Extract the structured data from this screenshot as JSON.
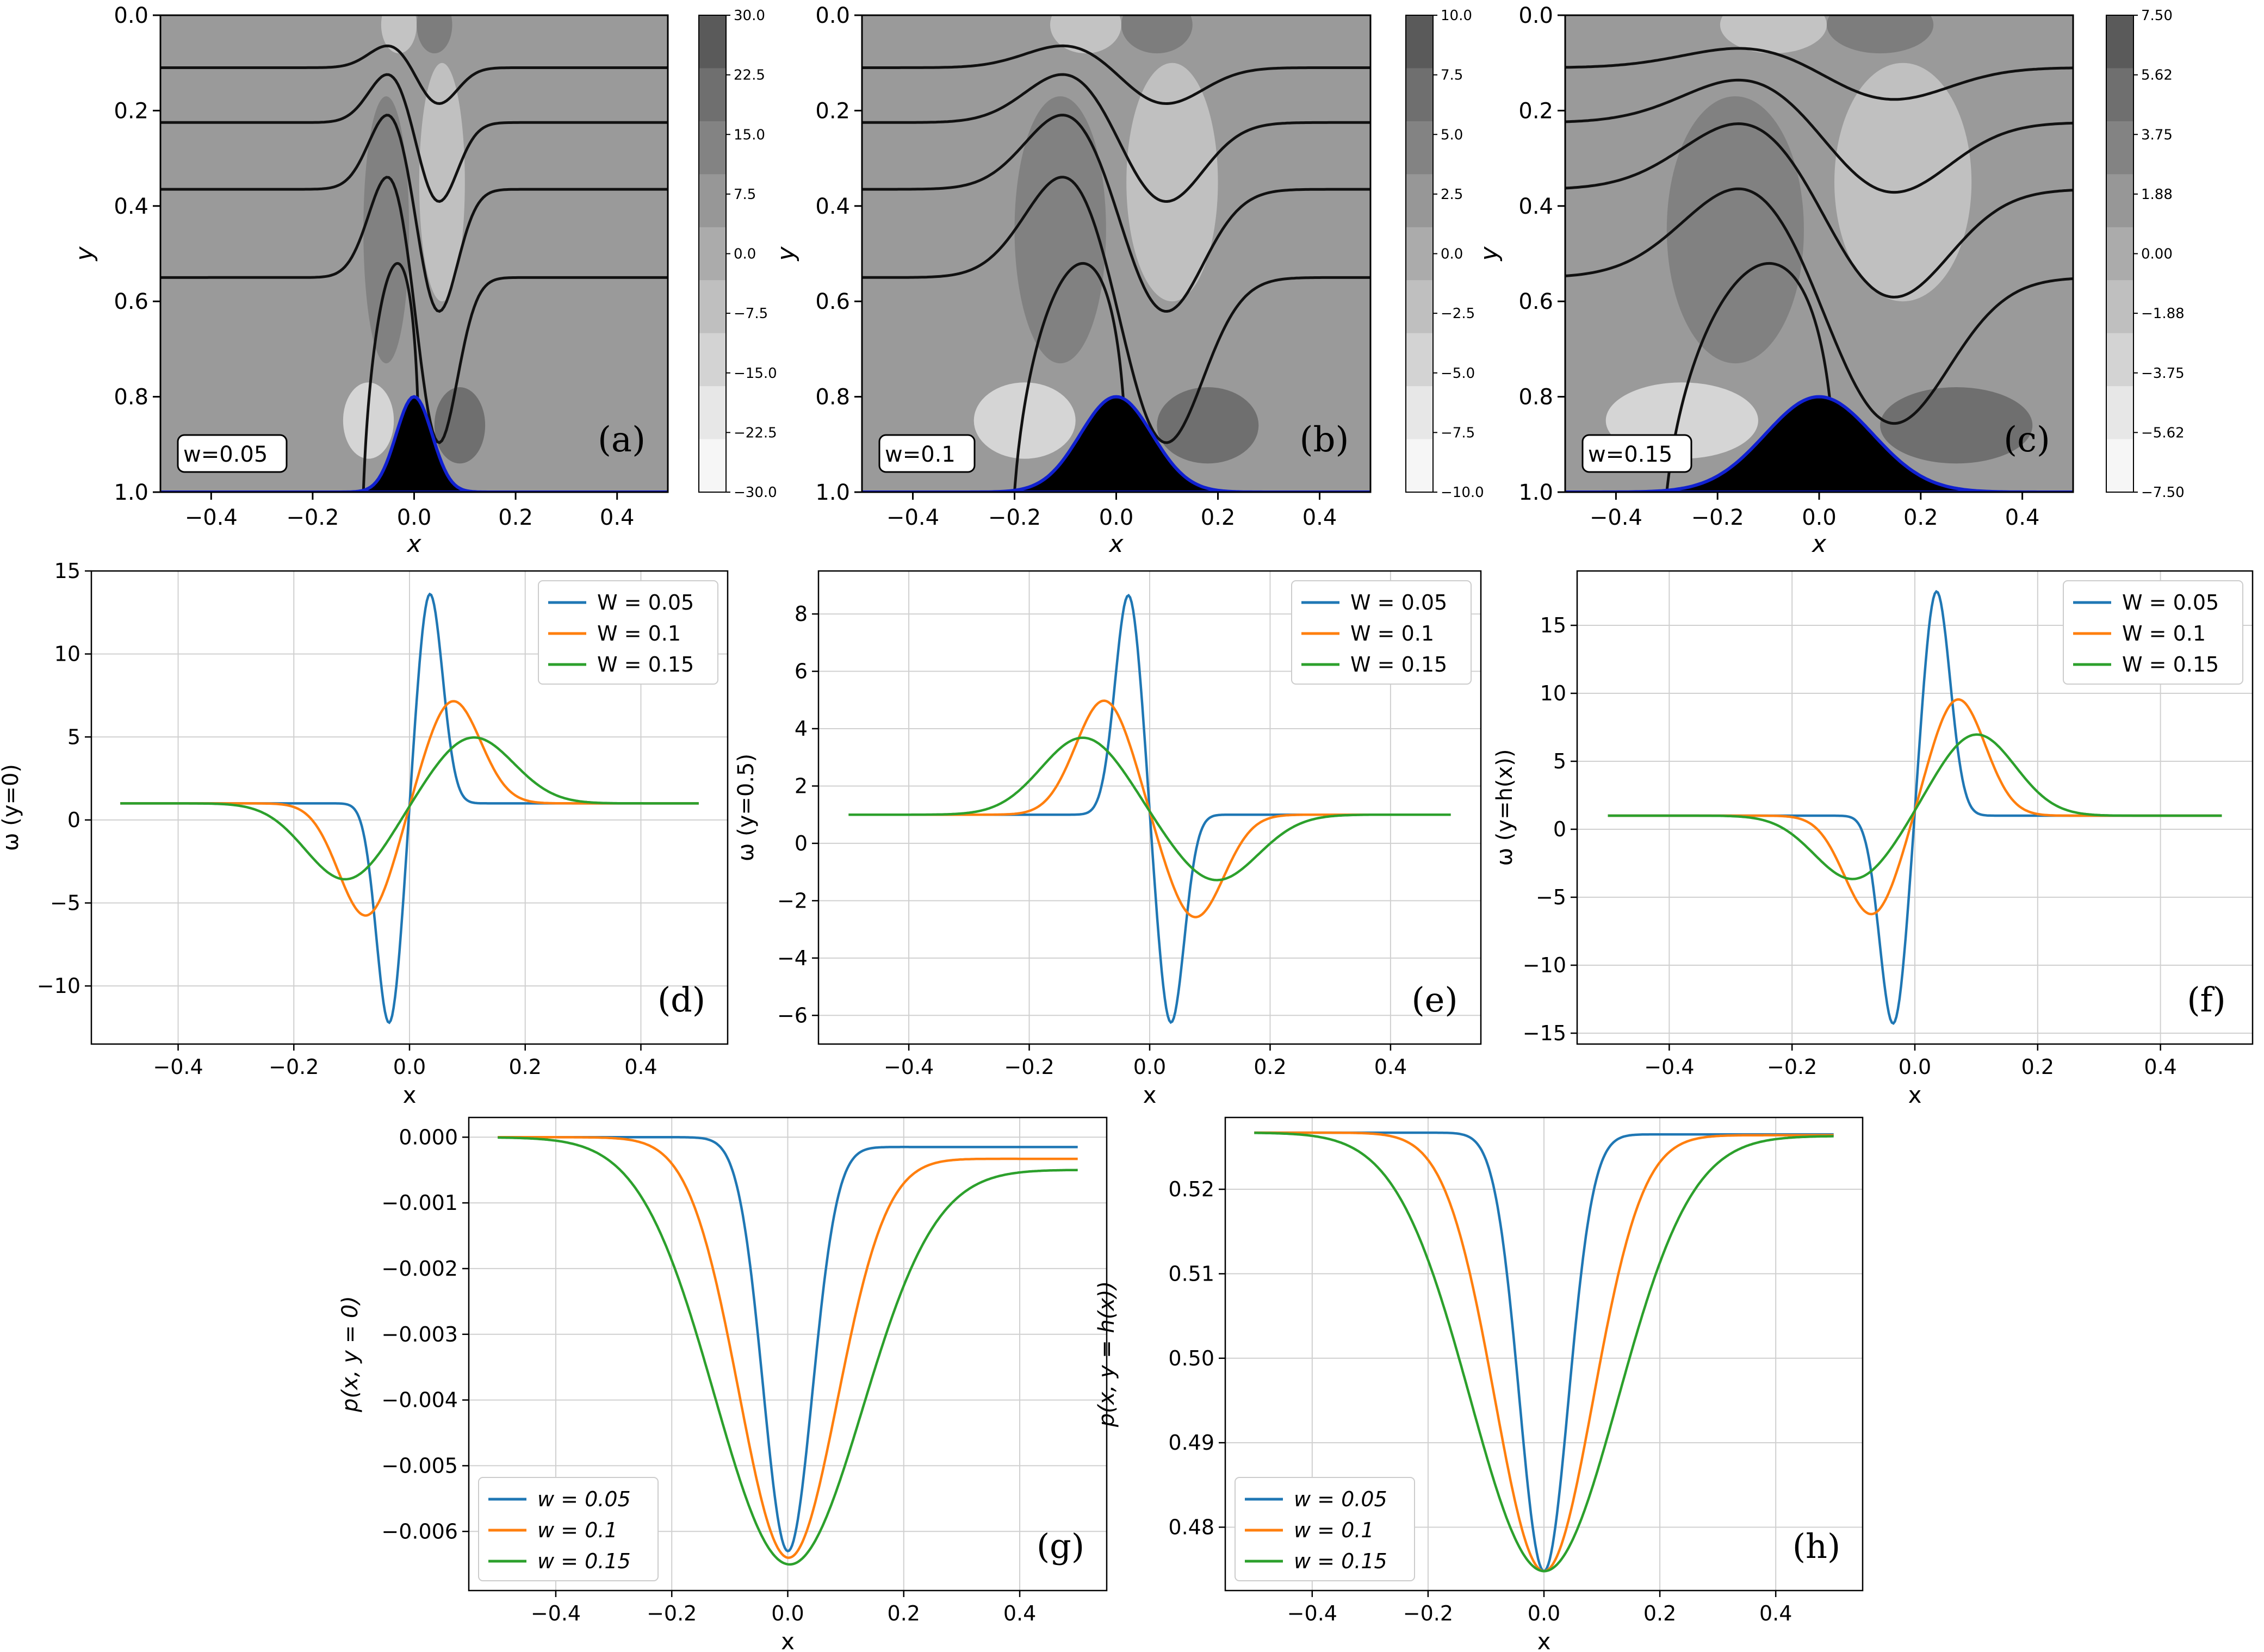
{
  "figure": {
    "contour_panels": [
      {
        "panel": "(a)",
        "w_label": "w=0.05",
        "w": 0.05,
        "xlabel": "x",
        "ylabel": "y",
        "x_ticks": [
          "−0.4",
          "−0.2",
          "0.0",
          "0.2",
          "0.4"
        ],
        "y_ticks": [
          "0.0",
          "0.2",
          "0.4",
          "0.6",
          "0.8",
          "1.0"
        ],
        "colorbar_ticks": [
          "30.0",
          "22.5",
          "15.0",
          "7.5",
          "0.0",
          "−7.5",
          "−15.0",
          "−22.5",
          "−30.0"
        ]
      },
      {
        "panel": "(b)",
        "w_label": "w=0.1",
        "w": 0.1,
        "xlabel": "x",
        "ylabel": "y",
        "x_ticks": [
          "−0.4",
          "−0.2",
          "0.0",
          "0.2",
          "0.4"
        ],
        "y_ticks": [
          "0.0",
          "0.2",
          "0.4",
          "0.6",
          "0.8",
          "1.0"
        ],
        "colorbar_ticks": [
          "10.0",
          "7.5",
          "5.0",
          "2.5",
          "0.0",
          "−2.5",
          "−5.0",
          "−7.5",
          "−10.0"
        ]
      },
      {
        "panel": "(c)",
        "w_label": "w=0.15",
        "w": 0.15,
        "xlabel": "x",
        "ylabel": "y",
        "x_ticks": [
          "−0.4",
          "−0.2",
          "0.0",
          "0.2",
          "0.4"
        ],
        "y_ticks": [
          "0.0",
          "0.2",
          "0.4",
          "0.6",
          "0.8",
          "1.0"
        ],
        "colorbar_ticks": [
          "7.50",
          "5.62",
          "3.75",
          "1.88",
          "0.00",
          "−1.88",
          "−3.75",
          "−5.62",
          "−7.50"
        ]
      }
    ]
  },
  "chart_data": [
    {
      "panel": "(d)",
      "type": "line",
      "xlabel": "x",
      "ylabel": "ω (y=0)",
      "xlim": [
        -0.55,
        0.55
      ],
      "ylim": [
        -13.5,
        15
      ],
      "x_ticks": [
        "−0.4",
        "−0.2",
        "0.0",
        "0.2",
        "0.4"
      ],
      "y_ticks": [
        "−10",
        "−5",
        "0",
        "5",
        "10",
        "15"
      ],
      "y_tick_values": [
        -10,
        -5,
        0,
        5,
        10,
        15
      ],
      "legend": [
        "W = 0.05",
        "W = 0.1",
        "W = 0.15"
      ],
      "legend_position": "top-right",
      "series": [
        {
          "name": "W = 0.05",
          "color": "#1f77b4",
          "baseline": 1,
          "extrema": [
            {
              "x": -0.035,
              "y": -12.3
            },
            {
              "x": 0.035,
              "y": 13.7
            }
          ],
          "width": 0.05
        },
        {
          "name": "W = 0.1",
          "color": "#ff7f0e",
          "baseline": 1,
          "extrema": [
            {
              "x": -0.075,
              "y": -5.8
            },
            {
              "x": 0.075,
              "y": 7.2
            }
          ],
          "width": 0.1
        },
        {
          "name": "W = 0.15",
          "color": "#2ca02c",
          "baseline": 1,
          "extrema": [
            {
              "x": -0.11,
              "y": -3.6
            },
            {
              "x": 0.11,
              "y": 5.0
            }
          ],
          "width": 0.15
        }
      ]
    },
    {
      "panel": "(e)",
      "type": "line",
      "xlabel": "x",
      "ylabel": "ω (y=0.5)",
      "xlim": [
        -0.55,
        0.55
      ],
      "ylim": [
        -7,
        9.5
      ],
      "x_ticks": [
        "−0.4",
        "−0.2",
        "0.0",
        "0.2",
        "0.4"
      ],
      "y_ticks": [
        "−6",
        "−4",
        "−2",
        "0",
        "2",
        "4",
        "6",
        "8"
      ],
      "y_tick_values": [
        -6,
        -4,
        -2,
        0,
        2,
        4,
        6,
        8
      ],
      "legend": [
        "W = 0.05",
        "W = 0.1",
        "W = 0.15"
      ],
      "legend_position": "top-right",
      "series": [
        {
          "name": "W = 0.05",
          "color": "#1f77b4",
          "baseline": 1,
          "extrema": [
            {
              "x": -0.035,
              "y": 8.7
            },
            {
              "x": 0.035,
              "y": -6.3
            }
          ],
          "width": 0.05
        },
        {
          "name": "W = 0.1",
          "color": "#ff7f0e",
          "baseline": 1,
          "extrema": [
            {
              "x": -0.075,
              "y": 5.0
            },
            {
              "x": 0.075,
              "y": -2.6
            }
          ],
          "width": 0.1
        },
        {
          "name": "W = 0.15",
          "color": "#2ca02c",
          "baseline": 1,
          "extrema": [
            {
              "x": -0.11,
              "y": 3.7
            },
            {
              "x": 0.11,
              "y": -1.3
            }
          ],
          "width": 0.15
        }
      ]
    },
    {
      "panel": "(f)",
      "type": "line",
      "xlabel": "x",
      "ylabel": "ω (y=h(x))",
      "xlim": [
        -0.55,
        0.55
      ],
      "ylim": [
        -15.8,
        19
      ],
      "x_ticks": [
        "−0.4",
        "−0.2",
        "0.0",
        "0.2",
        "0.4"
      ],
      "y_ticks": [
        "−15",
        "−10",
        "−5",
        "0",
        "5",
        "10",
        "15"
      ],
      "y_tick_values": [
        -15,
        -10,
        -5,
        0,
        5,
        10,
        15
      ],
      "legend": [
        "W = 0.05",
        "W = 0.1",
        "W = 0.15"
      ],
      "legend_position": "top-right",
      "series": [
        {
          "name": "W = 0.05",
          "color": "#1f77b4",
          "baseline": 1,
          "extrema": [
            {
              "x": -0.035,
              "y": -14.4
            },
            {
              "x": 0.035,
              "y": 17.6
            }
          ],
          "width": 0.05
        },
        {
          "name": "W = 0.1",
          "color": "#ff7f0e",
          "baseline": 1,
          "extrema": [
            {
              "x": -0.07,
              "y": -6.3
            },
            {
              "x": 0.07,
              "y": 9.6
            }
          ],
          "width": 0.1
        },
        {
          "name": "W = 0.15",
          "color": "#2ca02c",
          "baseline": 1,
          "extrema": [
            {
              "x": -0.1,
              "y": -3.7
            },
            {
              "x": 0.1,
              "y": 7.0
            }
          ],
          "width": 0.15
        }
      ]
    },
    {
      "panel": "(g)",
      "type": "line",
      "xlabel": "x",
      "ylabel": "p(x, y = 0)",
      "xlim": [
        -0.55,
        0.55
      ],
      "ylim": [
        -0.0069,
        0.0003
      ],
      "x_ticks": [
        "−0.4",
        "−0.2",
        "0.0",
        "0.2",
        "0.4"
      ],
      "y_ticks": [
        "0.000",
        "−0.001",
        "−0.002",
        "−0.003",
        "−0.004",
        "−0.005",
        "−0.006"
      ],
      "y_tick_values": [
        0,
        -0.001,
        -0.002,
        -0.003,
        -0.004,
        -0.005,
        -0.006
      ],
      "legend": [
        "w = 0.05",
        "w = 0.1",
        "w = 0.15"
      ],
      "legend_position": "bottom-left",
      "series": [
        {
          "name": "w = 0.05",
          "color": "#1f77b4",
          "left": 0.0,
          "right": -0.00015,
          "min": -0.0063,
          "width": 0.05
        },
        {
          "name": "w = 0.1",
          "color": "#ff7f0e",
          "left": 0.0,
          "right": -0.00033,
          "min": -0.0064,
          "width": 0.1
        },
        {
          "name": "w = 0.15",
          "color": "#2ca02c",
          "left": 0.0,
          "right": -0.0005,
          "min": -0.0065,
          "width": 0.15
        }
      ]
    },
    {
      "panel": "(h)",
      "type": "line",
      "xlabel": "x",
      "ylabel": "p(x, y = h(x))",
      "xlim": [
        -0.55,
        0.55
      ],
      "ylim": [
        0.4725,
        0.5285
      ],
      "x_ticks": [
        "−0.4",
        "−0.2",
        "0.0",
        "0.2",
        "0.4"
      ],
      "y_ticks": [
        "0.48",
        "0.49",
        "0.50",
        "0.51",
        "0.52"
      ],
      "y_tick_values": [
        0.48,
        0.49,
        0.5,
        0.51,
        0.52
      ],
      "legend": [
        "w = 0.05",
        "w = 0.1",
        "w = 0.15"
      ],
      "legend_position": "bottom-left",
      "series": [
        {
          "name": "w = 0.05",
          "color": "#1f77b4",
          "left": 0.5267,
          "right": 0.5265,
          "min": 0.4748,
          "width": 0.05
        },
        {
          "name": "w = 0.1",
          "color": "#ff7f0e",
          "left": 0.5267,
          "right": 0.5264,
          "min": 0.4748,
          "width": 0.1
        },
        {
          "name": "w = 0.15",
          "color": "#2ca02c",
          "left": 0.5267,
          "right": 0.5263,
          "min": 0.4748,
          "width": 0.15
        }
      ]
    }
  ]
}
